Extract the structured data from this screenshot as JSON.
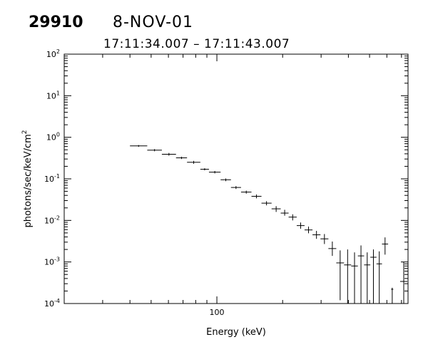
{
  "header": {
    "burst_id": "29910",
    "date": "8-NOV-01",
    "time_range": "17:11:34.007 – 17:11:43.007"
  },
  "chart_data": {
    "type": "scatter",
    "title": "",
    "xlabel": "Energy (keV)",
    "ylabel_base": "photons/sec/keV/cm",
    "ylabel_sup": "2",
    "xscale": "log",
    "yscale": "log",
    "xlim": [
      20,
      750
    ],
    "ylim": [
      0.0001,
      100
    ],
    "grid": false,
    "legend": "none",
    "x_tick_labels": [
      {
        "value": 100,
        "label": "100"
      }
    ],
    "y_tick_labels": [
      {
        "value": 0.0001,
        "base": "10",
        "exp": "-4"
      },
      {
        "value": 0.001,
        "base": "10",
        "exp": "-3"
      },
      {
        "value": 0.01,
        "base": "10",
        "exp": "-2"
      },
      {
        "value": 0.1,
        "base": "10",
        "exp": "-1"
      },
      {
        "value": 1,
        "base": "10",
        "exp": "0"
      },
      {
        "value": 10,
        "base": "10",
        "exp": "1"
      },
      {
        "value": 100,
        "base": "10",
        "exp": "2"
      }
    ],
    "points": [
      {
        "xlo": 40,
        "xhi": 48,
        "y": 0.62,
        "ylo": 0.59,
        "yhi": 0.65
      },
      {
        "xlo": 48,
        "xhi": 56,
        "y": 0.49,
        "ylo": 0.46,
        "yhi": 0.52
      },
      {
        "xlo": 56,
        "xhi": 65,
        "y": 0.39,
        "ylo": 0.36,
        "yhi": 0.42
      },
      {
        "xlo": 65,
        "xhi": 73,
        "y": 0.32,
        "ylo": 0.3,
        "yhi": 0.34
      },
      {
        "xlo": 73,
        "xhi": 84,
        "y": 0.25,
        "ylo": 0.23,
        "yhi": 0.27
      },
      {
        "xlo": 84,
        "xhi": 92,
        "y": 0.17,
        "ylo": 0.16,
        "yhi": 0.18
      },
      {
        "xlo": 92,
        "xhi": 104,
        "y": 0.145,
        "ylo": 0.135,
        "yhi": 0.155
      },
      {
        "xlo": 104,
        "xhi": 116,
        "y": 0.095,
        "ylo": 0.088,
        "yhi": 0.102
      },
      {
        "xlo": 116,
        "xhi": 129,
        "y": 0.062,
        "ylo": 0.057,
        "yhi": 0.067
      },
      {
        "xlo": 129,
        "xhi": 144,
        "y": 0.048,
        "ylo": 0.044,
        "yhi": 0.052
      },
      {
        "xlo": 144,
        "xhi": 160,
        "y": 0.038,
        "ylo": 0.034,
        "yhi": 0.042
      },
      {
        "xlo": 160,
        "xhi": 178,
        "y": 0.026,
        "ylo": 0.023,
        "yhi": 0.029
      },
      {
        "xlo": 178,
        "xhi": 196,
        "y": 0.019,
        "ylo": 0.016,
        "yhi": 0.022
      },
      {
        "xlo": 196,
        "xhi": 213,
        "y": 0.015,
        "ylo": 0.013,
        "yhi": 0.018
      },
      {
        "xlo": 213,
        "xhi": 232,
        "y": 0.012,
        "ylo": 0.01,
        "yhi": 0.014
      },
      {
        "xlo": 232,
        "xhi": 252,
        "y": 0.0075,
        "ylo": 0.0063,
        "yhi": 0.0089
      },
      {
        "xlo": 252,
        "xhi": 274,
        "y": 0.0059,
        "ylo": 0.0049,
        "yhi": 0.0071
      },
      {
        "xlo": 274,
        "xhi": 298,
        "y": 0.0045,
        "ylo": 0.0036,
        "yhi": 0.0056
      },
      {
        "xlo": 298,
        "xhi": 324,
        "y": 0.0036,
        "ylo": 0.0027,
        "yhi": 0.0047
      },
      {
        "xlo": 324,
        "xhi": 352,
        "y": 0.0021,
        "ylo": 0.0014,
        "yhi": 0.0031
      },
      {
        "xlo": 352,
        "xhi": 382,
        "y": 0.00095,
        "ylo": 0.00012,
        "yhi": 0.0019
      },
      {
        "xlo": 382,
        "xhi": 412,
        "y": 0.00085,
        "ylo": 0.0001,
        "yhi": 0.002
      },
      {
        "xlo": 412,
        "xhi": 442,
        "y": 0.0008,
        "ylo": 0.0001,
        "yhi": 0.0017
      },
      {
        "xlo": 442,
        "xhi": 472,
        "y": 0.0014,
        "ylo": 0.0001,
        "yhi": 0.0025
      },
      {
        "xlo": 472,
        "xhi": 504,
        "y": 0.00085,
        "ylo": 0.0001,
        "yhi": 0.0017
      },
      {
        "xlo": 504,
        "xhi": 538,
        "y": 0.0013,
        "ylo": 0.0001,
        "yhi": 0.002
      },
      {
        "xlo": 538,
        "xhi": 570,
        "y": 0.0009,
        "ylo": 0.0001,
        "yhi": 0.0018
      },
      {
        "xlo": 570,
        "xhi": 608,
        "y": 0.0027,
        "ylo": 0.0015,
        "yhi": 0.0039
      },
      {
        "xlo": 628,
        "xhi": 642,
        "y": 0.00022,
        "ylo": 0.0001,
        "yhi": 0.00024
      },
      {
        "xlo": 690,
        "xhi": 745,
        "y": 0.00034,
        "ylo": 0.0001,
        "yhi": 0.001
      }
    ]
  }
}
